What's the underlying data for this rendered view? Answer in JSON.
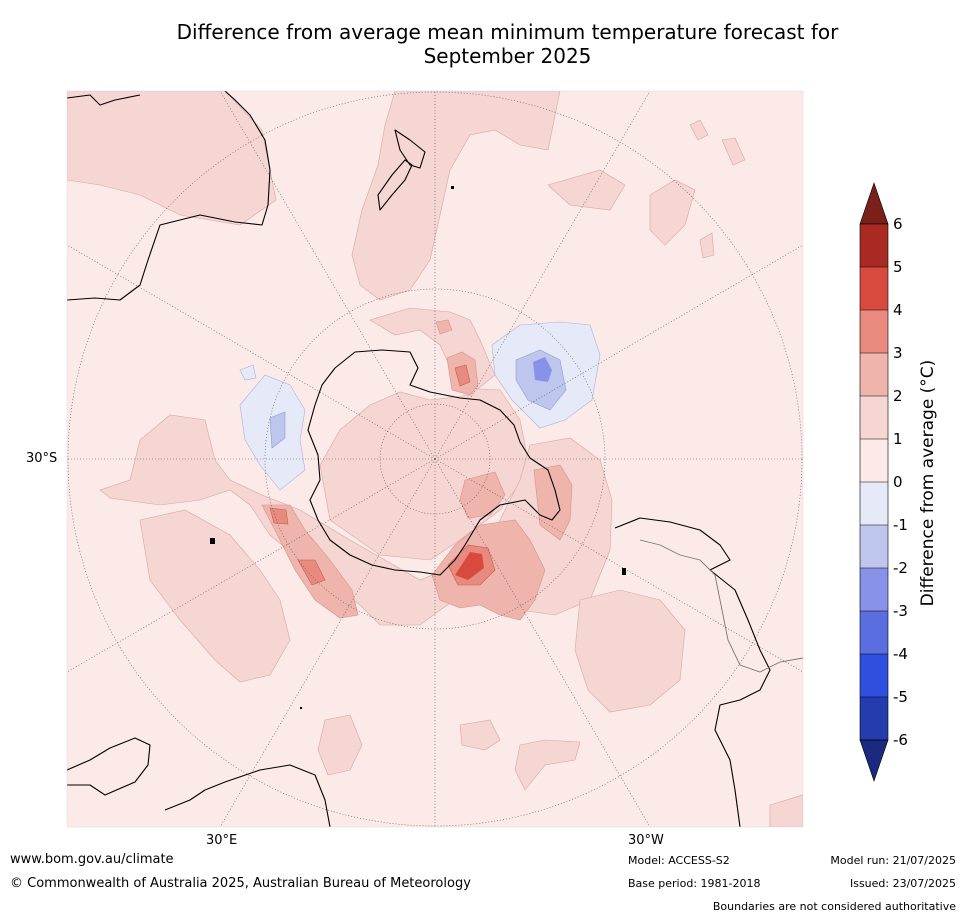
{
  "title": {
    "line1": "Difference from average mean minimum temperature forecast for",
    "line2": "September 2025"
  },
  "map": {
    "lat_label": "30°S",
    "lon_labels": {
      "east": "30°E",
      "west": "30°W"
    }
  },
  "colorbar": {
    "title": "Difference from average (°C)",
    "ticks": [
      "6",
      "5",
      "4",
      "3",
      "2",
      "1",
      "0",
      "-1",
      "-2",
      "-3",
      "-4",
      "-5",
      "-6"
    ],
    "colors": {
      "over": "#7a1f1a",
      "5_6": "#a82a22",
      "4_5": "#d94a3e",
      "3_4": "#e98a7f",
      "2_3": "#efb5ad",
      "1_2": "#f5d6d2",
      "0_1": "#fbeae8",
      "m1_0": "#e6eaf8",
      "m2_m1": "#bfc6ee",
      "m3_m2": "#8792e8",
      "m4_m3": "#5b6ee0",
      "m5_m4": "#2f4fde",
      "m6_m5": "#243cae",
      "under": "#1b2a80"
    }
  },
  "footer": {
    "url": "www.bom.gov.au/climate",
    "copyright": "© Commonwealth of Australia 2025, Australian Bureau of Meteorology",
    "model": "Model: ACCESS-S2",
    "base_period": "Base period: 1981-2018",
    "model_run": "Model run: 21/07/2025",
    "issued": "Issued: 23/07/2025",
    "disclaimer": "Boundaries are not considered authoritative"
  }
}
